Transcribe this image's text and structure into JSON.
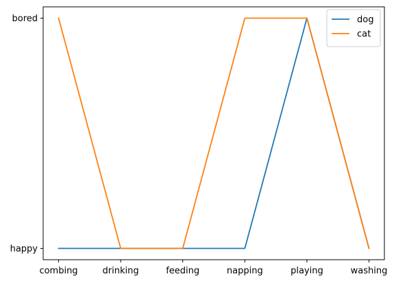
{
  "chart_data": {
    "type": "line",
    "categories": [
      "combing",
      "drinking",
      "feeding",
      "napping",
      "playing",
      "washing"
    ],
    "y_categories": [
      "happy",
      "bored"
    ],
    "series": [
      {
        "name": "dog",
        "color": "#1f77b4",
        "values": [
          "happy",
          "happy",
          "happy",
          "happy",
          "bored",
          "happy"
        ]
      },
      {
        "name": "cat",
        "color": "#ff7f0e",
        "values": [
          "bored",
          "happy",
          "happy",
          "bored",
          "bored",
          "happy"
        ]
      }
    ],
    "title": "",
    "xlabel": "",
    "ylabel": "",
    "grid": false,
    "legend_position": "top-right"
  }
}
